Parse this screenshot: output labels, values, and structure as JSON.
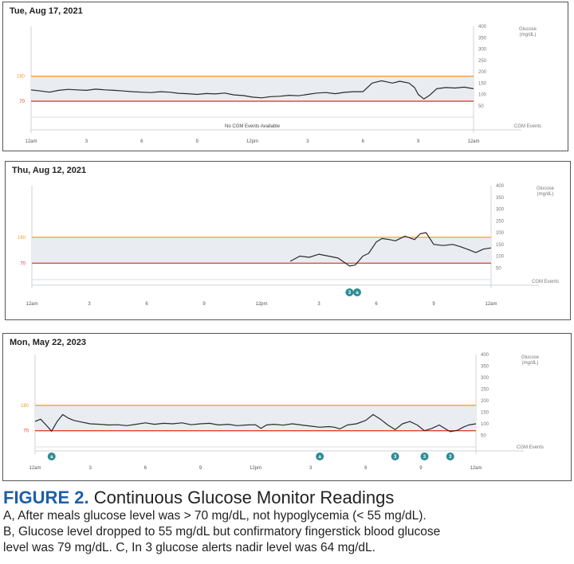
{
  "colors": {
    "high_line": "#f0a030",
    "low_line": "#e0402f",
    "band_fill": "#e9edf2",
    "trace": "#2a2a2a",
    "event_badge": "#2b8e95",
    "border": "#555555",
    "caption_label": "#1d5fa8"
  },
  "chart_data": [
    {
      "type": "line",
      "date": "Tue, Aug 17, 2021",
      "x_tick_labels": [
        "12am",
        "3",
        "6",
        "9",
        "12pm",
        "3",
        "6",
        "9",
        "12am"
      ],
      "x_tick_hours": [
        0,
        3,
        6,
        9,
        12,
        15,
        18,
        21,
        24
      ],
      "y_tick_labels": [
        "400",
        "350",
        "300",
        "250",
        "200",
        "150",
        "100",
        "50"
      ],
      "y_ticks": [
        400,
        350,
        300,
        250,
        200,
        150,
        100,
        50
      ],
      "ylim": [
        0,
        400
      ],
      "y_axis_title": [
        "Glucose",
        "(mg/dL)"
      ],
      "events_label": "CGM Events",
      "target_high": {
        "label": "180",
        "value": 180
      },
      "target_low": {
        "label": "70",
        "value": 70
      },
      "events_note": "No CGM Events Available",
      "events": [],
      "series": [
        {
          "x": [
            0,
            0.5,
            1,
            1.5,
            2,
            2.5,
            3,
            3.5,
            4,
            4.5,
            5,
            5.5,
            6,
            6.5,
            7,
            7.5,
            8,
            8.5,
            9,
            9.5,
            10,
            10.5,
            11,
            11.5,
            12,
            12.5,
            13,
            13.5,
            14,
            14.5,
            15,
            15.5,
            16,
            16.5,
            17,
            17.5,
            18,
            18.5,
            19,
            19.3,
            19.6,
            20,
            20.5,
            20.8,
            21,
            21.3,
            21.6,
            22,
            22.5,
            23,
            23.5,
            24
          ],
          "y": [
            120,
            115,
            110,
            118,
            122,
            120,
            118,
            123,
            120,
            118,
            115,
            112,
            110,
            108,
            112,
            110,
            105,
            103,
            100,
            104,
            102,
            106,
            98,
            95,
            88,
            85,
            90,
            92,
            96,
            94,
            100,
            106,
            108,
            103,
            109,
            112,
            112,
            150,
            160,
            155,
            150,
            158,
            150,
            130,
            100,
            80,
            95,
            125,
            130,
            128,
            132,
            125
          ]
        }
      ]
    },
    {
      "type": "line",
      "date": "Thu, Aug 12, 2021",
      "x_tick_labels": [
        "12am",
        "3",
        "6",
        "9",
        "12pm",
        "3",
        "6",
        "9",
        "12am"
      ],
      "x_tick_hours": [
        0,
        3,
        6,
        9,
        12,
        15,
        18,
        21,
        24
      ],
      "y_tick_labels": [
        "400",
        "350",
        "300",
        "250",
        "200",
        "150",
        "100",
        "50"
      ],
      "y_ticks": [
        400,
        350,
        300,
        250,
        200,
        150,
        100,
        50
      ],
      "ylim": [
        0,
        400
      ],
      "y_axis_title": [
        "Glucose",
        "(mg/dL)"
      ],
      "events_label": "CGM Events",
      "target_high": {
        "label": "180",
        "value": 180
      },
      "target_low": {
        "label": "70",
        "value": 70
      },
      "events_note": "",
      "events": [
        {
          "hour": 16.6,
          "label": "3"
        },
        {
          "hour": 17.0,
          "label": "a"
        }
      ],
      "series": [
        {
          "x": [
            13.5,
            14,
            14.5,
            15,
            15.5,
            16,
            16.3,
            16.6,
            16.9,
            17.3,
            17.6,
            18,
            18.3,
            18.7,
            19,
            19.5,
            20,
            20.3,
            20.6,
            21,
            21.5,
            22,
            22.4,
            22.8,
            23.2,
            23.6,
            24
          ],
          "y": [
            78,
            100,
            95,
            108,
            100,
            92,
            75,
            58,
            62,
            100,
            112,
            160,
            175,
            170,
            165,
            185,
            170,
            195,
            200,
            150,
            145,
            150,
            140,
            128,
            115,
            130,
            135
          ]
        }
      ]
    },
    {
      "type": "line",
      "date": "Mon, May 22, 2023",
      "x_tick_labels": [
        "12am",
        "3",
        "6",
        "9",
        "12pm",
        "3",
        "6",
        "9",
        "12am"
      ],
      "x_tick_hours": [
        0,
        3,
        6,
        9,
        12,
        15,
        18,
        21,
        24
      ],
      "y_tick_labels": [
        "400",
        "350",
        "300",
        "250",
        "200",
        "150",
        "100",
        "50"
      ],
      "y_ticks": [
        400,
        350,
        300,
        250,
        200,
        150,
        100,
        50
      ],
      "ylim": [
        0,
        400
      ],
      "y_axis_title": [
        "Glucose",
        "(mg/dL)"
      ],
      "events_label": "CGM Events",
      "target_high": {
        "label": "180",
        "value": 180
      },
      "target_low": {
        "label": "70",
        "value": 70
      },
      "events_note": "",
      "events": [
        {
          "hour": 0.9,
          "label": "a"
        },
        {
          "hour": 15.5,
          "label": "a"
        },
        {
          "hour": 19.6,
          "label": "3"
        },
        {
          "hour": 21.2,
          "label": "3"
        },
        {
          "hour": 22.6,
          "label": "3"
        }
      ],
      "series": [
        {
          "x": [
            0,
            0.3,
            0.6,
            0.9,
            1.2,
            1.5,
            1.8,
            2.1,
            2.5,
            3,
            3.5,
            4,
            4.5,
            5,
            5.5,
            6,
            6.5,
            7,
            7.5,
            8,
            8.5,
            9,
            9.5,
            10,
            10.5,
            11,
            11.5,
            12,
            12.3,
            12.6,
            13,
            13.5,
            14,
            14.5,
            15,
            15.5,
            16,
            16.3,
            16.6,
            17,
            17.5,
            18,
            18.4,
            18.8,
            19.2,
            19.6,
            20,
            20.4,
            20.8,
            21.2,
            21.6,
            22,
            22.3,
            22.6,
            23,
            23.3,
            23.6,
            24
          ],
          "y": [
            110,
            120,
            95,
            68,
            110,
            140,
            125,
            115,
            108,
            100,
            98,
            95,
            96,
            92,
            98,
            104,
            98,
            102,
            100,
            104,
            96,
            100,
            102,
            95,
            98,
            92,
            95,
            96,
            80,
            95,
            98,
            94,
            100,
            95,
            90,
            85,
            88,
            85,
            78,
            95,
            100,
            115,
            140,
            120,
            95,
            75,
            100,
            110,
            95,
            70,
            80,
            95,
            80,
            66,
            72,
            85,
            95,
            100
          ]
        }
      ]
    }
  ],
  "caption": {
    "label": "FIGURE 2.",
    "title": " Continuous Glucose Monitor Readings",
    "lines": [
      "A, After meals glucose level was > 70 mg/dL, not hypoglycemia (< 55 mg/dL).",
      "B, Glucose level dropped to 55 mg/dL but confirmatory fingerstick blood glucose",
      "level was 79 mg/dL. C, In 3 glucose alerts nadir level was 64 mg/dL."
    ]
  }
}
